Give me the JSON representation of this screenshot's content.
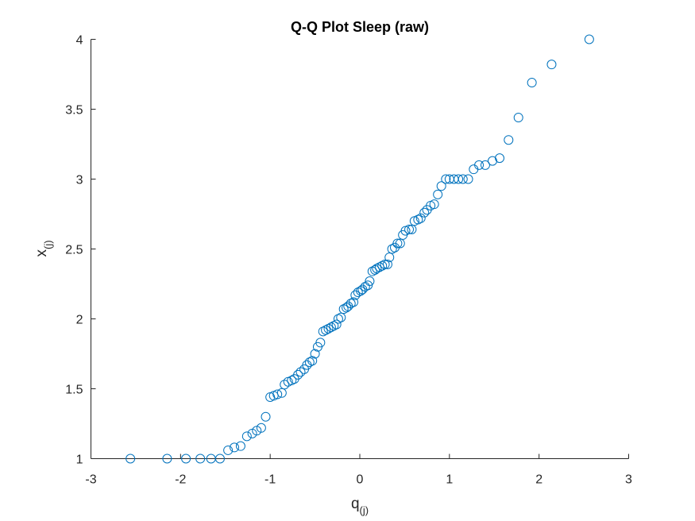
{
  "chart_data": {
    "type": "scatter",
    "title": "Q-Q Plot Sleep (raw)",
    "xlabel": {
      "main": "q",
      "sub": "(j)"
    },
    "ylabel": {
      "main": "x",
      "sub": "(j)"
    },
    "xlim": [
      -3,
      3
    ],
    "ylim": [
      1,
      4
    ],
    "xticks": [
      -3,
      -2,
      -1,
      0,
      1,
      2,
      3
    ],
    "xtick_labels": [
      "-3",
      "-2",
      "-1",
      "0",
      "1",
      "2",
      "3"
    ],
    "yticks": [
      1,
      1.5,
      2,
      2.5,
      3,
      3.5,
      4
    ],
    "ytick_labels": [
      "1",
      "1.5",
      "2",
      "2.5",
      "3",
      "3.5",
      "4"
    ],
    "grid": false,
    "marker": "circle-open",
    "color": "#0072BD",
    "series": [
      {
        "points": [
          [
            -2.56,
            1.0
          ],
          [
            -2.15,
            1.0
          ],
          [
            -1.94,
            1.0
          ],
          [
            -1.78,
            1.0
          ],
          [
            -1.66,
            1.0
          ],
          [
            -1.56,
            1.0
          ],
          [
            -1.47,
            1.06
          ],
          [
            -1.4,
            1.08
          ],
          [
            -1.33,
            1.09
          ],
          [
            -1.26,
            1.16
          ],
          [
            -1.2,
            1.18
          ],
          [
            -1.15,
            1.2
          ],
          [
            -1.1,
            1.22
          ],
          [
            -1.05,
            1.3
          ],
          [
            -1.0,
            1.44
          ],
          [
            -0.96,
            1.45
          ],
          [
            -0.92,
            1.46
          ],
          [
            -0.87,
            1.47
          ],
          [
            -0.84,
            1.53
          ],
          [
            -0.8,
            1.55
          ],
          [
            -0.76,
            1.56
          ],
          [
            -0.73,
            1.57
          ],
          [
            -0.69,
            1.6
          ],
          [
            -0.66,
            1.62
          ],
          [
            -0.62,
            1.64
          ],
          [
            -0.59,
            1.67
          ],
          [
            -0.56,
            1.69
          ],
          [
            -0.53,
            1.7
          ],
          [
            -0.5,
            1.75
          ],
          [
            -0.47,
            1.8
          ],
          [
            -0.44,
            1.83
          ],
          [
            -0.41,
            1.91
          ],
          [
            -0.38,
            1.92
          ],
          [
            -0.35,
            1.93
          ],
          [
            -0.32,
            1.94
          ],
          [
            -0.29,
            1.95
          ],
          [
            -0.26,
            1.96
          ],
          [
            -0.24,
            2.0
          ],
          [
            -0.21,
            2.01
          ],
          [
            -0.18,
            2.07
          ],
          [
            -0.15,
            2.08
          ],
          [
            -0.13,
            2.09
          ],
          [
            -0.1,
            2.11
          ],
          [
            -0.07,
            2.12
          ],
          [
            -0.05,
            2.17
          ],
          [
            -0.02,
            2.19
          ],
          [
            0.01,
            2.2
          ],
          [
            0.03,
            2.21
          ],
          [
            0.06,
            2.23
          ],
          [
            0.09,
            2.24
          ],
          [
            0.11,
            2.27
          ],
          [
            0.14,
            2.34
          ],
          [
            0.17,
            2.35
          ],
          [
            0.19,
            2.36
          ],
          [
            0.22,
            2.37
          ],
          [
            0.25,
            2.38
          ],
          [
            0.28,
            2.39
          ],
          [
            0.31,
            2.39
          ],
          [
            0.33,
            2.44
          ],
          [
            0.36,
            2.5
          ],
          [
            0.39,
            2.51
          ],
          [
            0.42,
            2.54
          ],
          [
            0.45,
            2.54
          ],
          [
            0.48,
            2.6
          ],
          [
            0.51,
            2.63
          ],
          [
            0.55,
            2.64
          ],
          [
            0.58,
            2.64
          ],
          [
            0.61,
            2.7
          ],
          [
            0.65,
            2.71
          ],
          [
            0.68,
            2.72
          ],
          [
            0.72,
            2.76
          ],
          [
            0.75,
            2.78
          ],
          [
            0.79,
            2.81
          ],
          [
            0.83,
            2.82
          ],
          [
            0.87,
            2.89
          ],
          [
            0.91,
            2.95
          ],
          [
            0.96,
            3.0
          ],
          [
            1.0,
            3.0
          ],
          [
            1.05,
            3.0
          ],
          [
            1.1,
            3.0
          ],
          [
            1.15,
            3.0
          ],
          [
            1.21,
            3.0
          ],
          [
            1.27,
            3.07
          ],
          [
            1.33,
            3.1
          ],
          [
            1.4,
            3.1
          ],
          [
            1.48,
            3.13
          ],
          [
            1.56,
            3.15
          ],
          [
            1.66,
            3.28
          ],
          [
            1.77,
            3.44
          ],
          [
            1.92,
            3.69
          ],
          [
            2.14,
            3.82
          ],
          [
            2.56,
            4.0
          ]
        ]
      }
    ]
  }
}
